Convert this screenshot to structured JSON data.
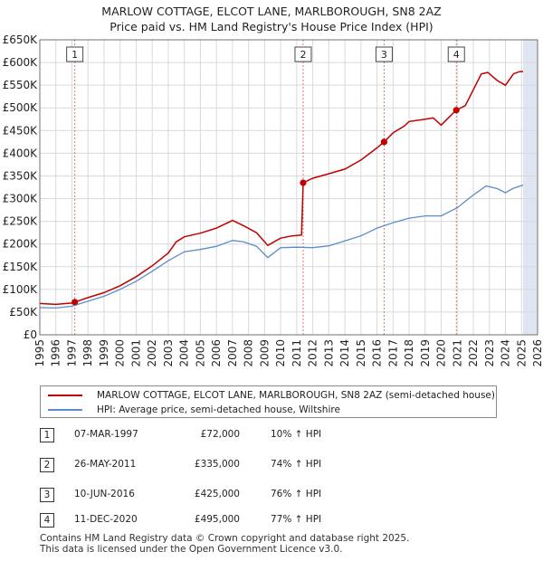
{
  "header": {
    "title_line1": "MARLOW COTTAGE, ELCOT LANE, MARLBOROUGH, SN8 2AZ",
    "title_line2": "Price paid vs. HM Land Registry's House Price Index (HPI)"
  },
  "colors": {
    "property_line": "#c00000",
    "hpi_line": "#5b8dc9",
    "shade": "#dfe6f2",
    "grid": "#d9d9d9",
    "marker_line": "#e06060",
    "axis": "#555555"
  },
  "legend": {
    "property_label": "MARLOW COTTAGE, ELCOT LANE, MARLBOROUGH, SN8 2AZ (semi-detached house)",
    "hpi_label": "HPI: Average price, semi-detached house, Wiltshire"
  },
  "sales": [
    {
      "num": "1",
      "date": "07-MAR-1997",
      "price": "£72,000",
      "hpi": "10% ↑ HPI"
    },
    {
      "num": "2",
      "date": "26-MAY-2011",
      "price": "£335,000",
      "hpi": "74% ↑ HPI"
    },
    {
      "num": "3",
      "date": "10-JUN-2016",
      "price": "£425,000",
      "hpi": "76% ↑ HPI"
    },
    {
      "num": "4",
      "date": "11-DEC-2020",
      "price": "£495,000",
      "hpi": "77% ↑ HPI"
    }
  ],
  "footer": {
    "line1": "Contains HM Land Registry data © Crown copyright and database right 2025.",
    "line2": "This data is licensed under the Open Government Licence v3.0."
  },
  "chart_data": {
    "type": "line",
    "title": "MARLOW COTTAGE, ELCOT LANE, MARLBOROUGH, SN8 2AZ — Price paid vs. HM Land Registry's House Price Index (HPI)",
    "xlabel": "",
    "ylabel": "",
    "xlim": [
      1995,
      2026
    ],
    "ylim": [
      0,
      650000
    ],
    "grid": true,
    "legend_position": "bottom",
    "x_ticks": [
      "1995",
      "1996",
      "1997",
      "1998",
      "1999",
      "2000",
      "2001",
      "2002",
      "2003",
      "2004",
      "2005",
      "2006",
      "2007",
      "2008",
      "2009",
      "2010",
      "2011",
      "2012",
      "2013",
      "2014",
      "2015",
      "2016",
      "2017",
      "2018",
      "2019",
      "2020",
      "2021",
      "2022",
      "2023",
      "2024",
      "2025",
      "2026"
    ],
    "y_ticks": [
      {
        "value": 0,
        "label": "£0"
      },
      {
        "value": 50000,
        "label": "£50K"
      },
      {
        "value": 100000,
        "label": "£100K"
      },
      {
        "value": 150000,
        "label": "£150K"
      },
      {
        "value": 200000,
        "label": "£200K"
      },
      {
        "value": 250000,
        "label": "£250K"
      },
      {
        "value": 300000,
        "label": "£300K"
      },
      {
        "value": 350000,
        "label": "£350K"
      },
      {
        "value": 400000,
        "label": "£400K"
      },
      {
        "value": 450000,
        "label": "£450K"
      },
      {
        "value": 500000,
        "label": "£500K"
      },
      {
        "value": 550000,
        "label": "£550K"
      },
      {
        "value": 600000,
        "label": "£600K"
      },
      {
        "value": 650000,
        "label": "£650K"
      }
    ],
    "shaded_region": {
      "from": 2025.1,
      "to": 2026
    },
    "markers": [
      {
        "label": "1",
        "x": 1997.18,
        "y": 72000
      },
      {
        "label": "2",
        "x": 2011.4,
        "y": 335000
      },
      {
        "label": "3",
        "x": 2016.44,
        "y": 425000
      },
      {
        "label": "4",
        "x": 2020.94,
        "y": 495000
      }
    ],
    "series": [
      {
        "name": "MARLOW COTTAGE, ELCOT LANE, MARLBOROUGH, SN8 2AZ (semi-detached house)",
        "x": [
          1995.0,
          1996.0,
          1997.0,
          1997.18,
          1998.0,
          1999.0,
          2000.0,
          2001.0,
          2002.0,
          2003.0,
          2003.5,
          2004.0,
          2005.0,
          2006.0,
          2007.0,
          2007.7,
          2008.5,
          2009.2,
          2010.0,
          2010.7,
          2011.3,
          2011.4,
          2012.0,
          2013.0,
          2014.0,
          2015.0,
          2016.0,
          2016.44,
          2017.0,
          2017.7,
          2018.0,
          2019.0,
          2019.5,
          2020.0,
          2020.5,
          2020.94,
          2021.5,
          2022.0,
          2022.5,
          2022.9,
          2023.5,
          2024.0,
          2024.5,
          2024.9,
          2025.1
        ],
        "values": [
          69000,
          67000,
          70000,
          72000,
          82000,
          93000,
          108000,
          128000,
          152000,
          180000,
          205000,
          216000,
          224000,
          235000,
          252000,
          240000,
          225000,
          197000,
          213000,
          218000,
          220000,
          335000,
          345000,
          355000,
          365000,
          385000,
          412000,
          425000,
          445000,
          460000,
          470000,
          475000,
          478000,
          462000,
          480000,
          495000,
          505000,
          540000,
          575000,
          578000,
          560000,
          550000,
          575000,
          580000,
          580000
        ]
      },
      {
        "name": "HPI: Average price, semi-detached house, Wiltshire",
        "x": [
          1995.0,
          1996.0,
          1997.0,
          1998.0,
          1999.0,
          2000.0,
          2001.0,
          2002.0,
          2003.0,
          2004.0,
          2005.0,
          2006.0,
          2007.0,
          2007.7,
          2008.5,
          2009.2,
          2010.0,
          2011.0,
          2012.0,
          2013.0,
          2014.0,
          2015.0,
          2016.0,
          2017.0,
          2018.0,
          2019.0,
          2020.0,
          2021.0,
          2022.0,
          2022.8,
          2023.5,
          2024.0,
          2024.5,
          2025.1
        ],
        "values": [
          60000,
          59000,
          63000,
          74000,
          85000,
          100000,
          118000,
          140000,
          163000,
          183000,
          188000,
          195000,
          208000,
          205000,
          195000,
          170000,
          192000,
          193000,
          192000,
          196000,
          207000,
          218000,
          235000,
          247000,
          257000,
          262000,
          262000,
          280000,
          308000,
          328000,
          322000,
          313000,
          323000,
          330000
        ]
      }
    ]
  }
}
